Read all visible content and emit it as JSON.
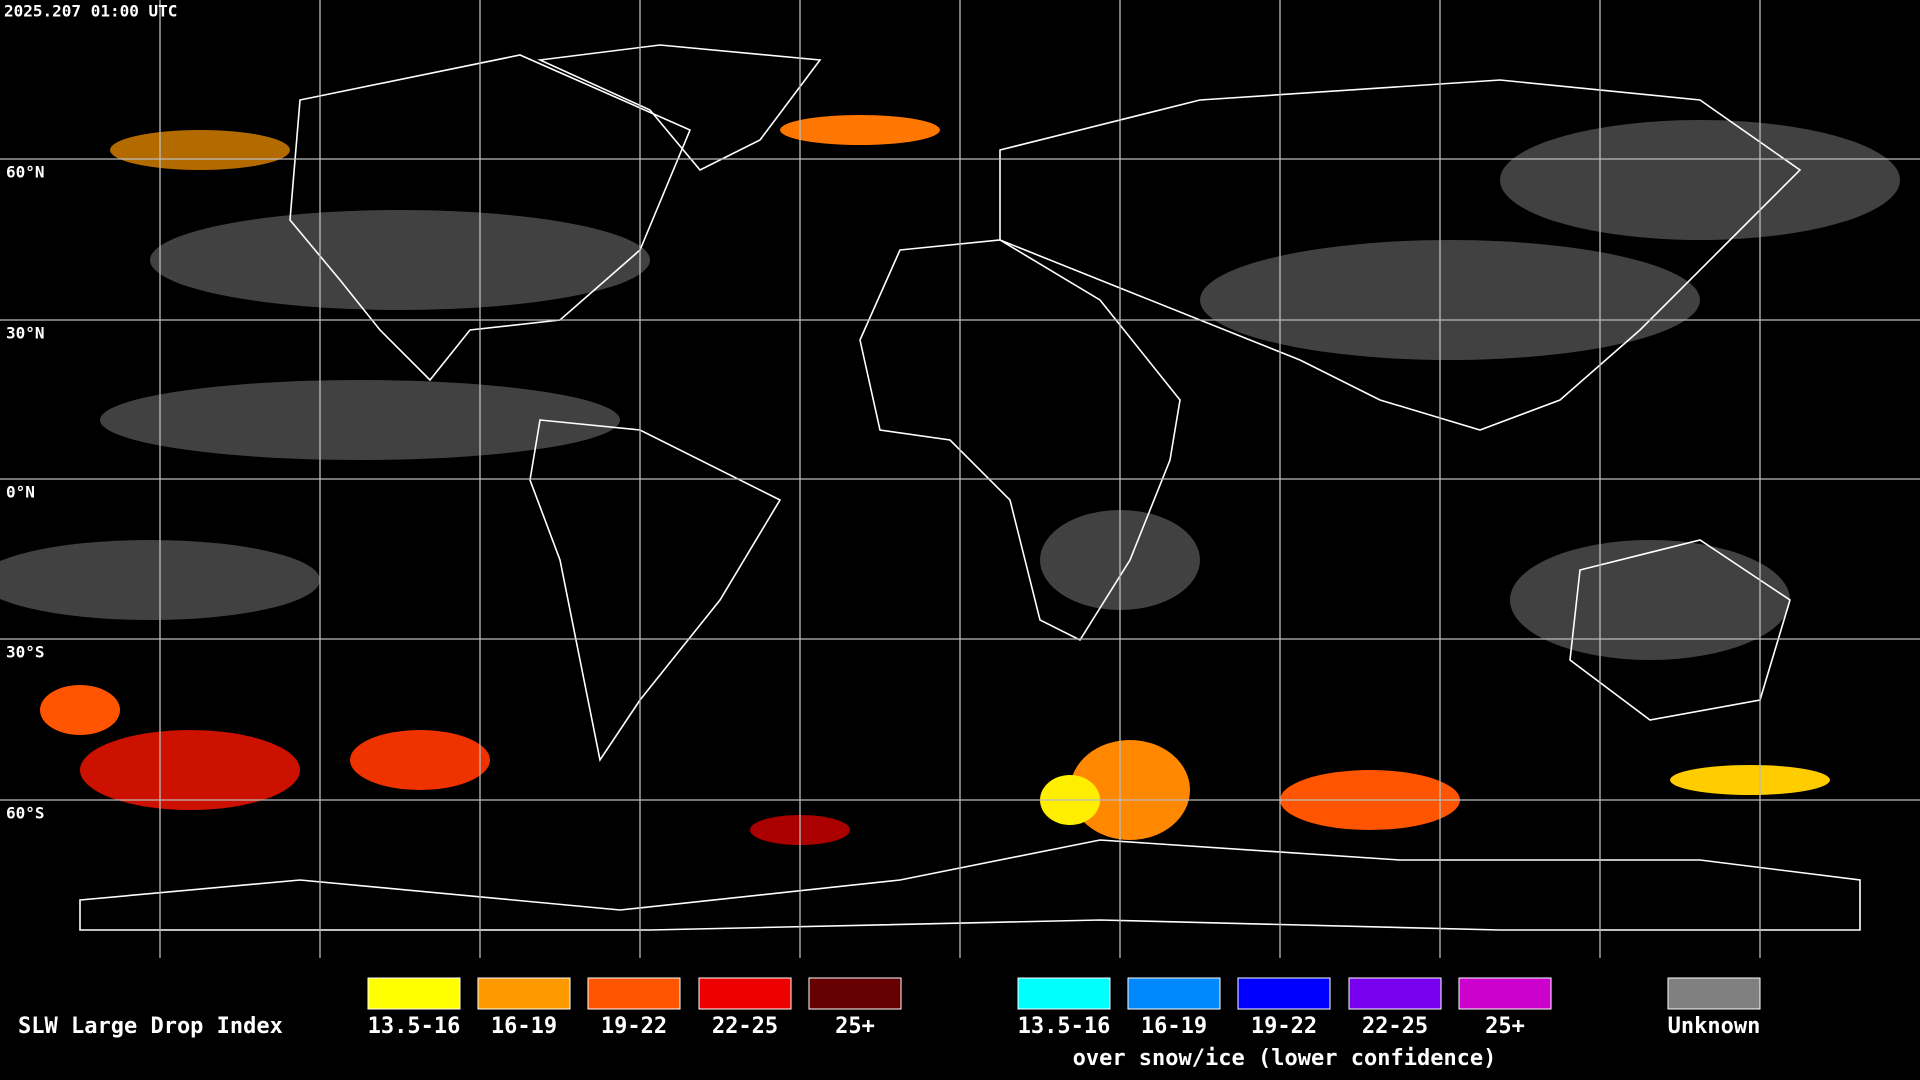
{
  "header": {
    "timestamp": "2025.207 01:00 UTC"
  },
  "map": {
    "lat_labels": [
      "60°N",
      "30°N",
      "0°N",
      "30°S",
      "60°S"
    ]
  },
  "legend": {
    "title": "SLW Large Drop Index",
    "groups": [
      {
        "items": [
          {
            "label": "13.5-16",
            "color": "#ffff00"
          },
          {
            "label": "16-19",
            "color": "#ff9900"
          },
          {
            "label": "19-22",
            "color": "#ff5500"
          },
          {
            "label": "22-25",
            "color": "#ee0000"
          },
          {
            "label": "25+",
            "color": "#660000"
          }
        ]
      },
      {
        "items": [
          {
            "label": "13.5-16",
            "color": "#00ffff"
          },
          {
            "label": "16-19",
            "color": "#0088ff"
          },
          {
            "label": "19-22",
            "color": "#0000ff"
          },
          {
            "label": "22-25",
            "color": "#7700ee"
          },
          {
            "label": "25+",
            "color": "#cc00cc"
          }
        ],
        "caption": "over snow/ice (lower confidence)"
      },
      {
        "items": [
          {
            "label": "Unknown",
            "color": "#808080"
          }
        ]
      }
    ]
  }
}
